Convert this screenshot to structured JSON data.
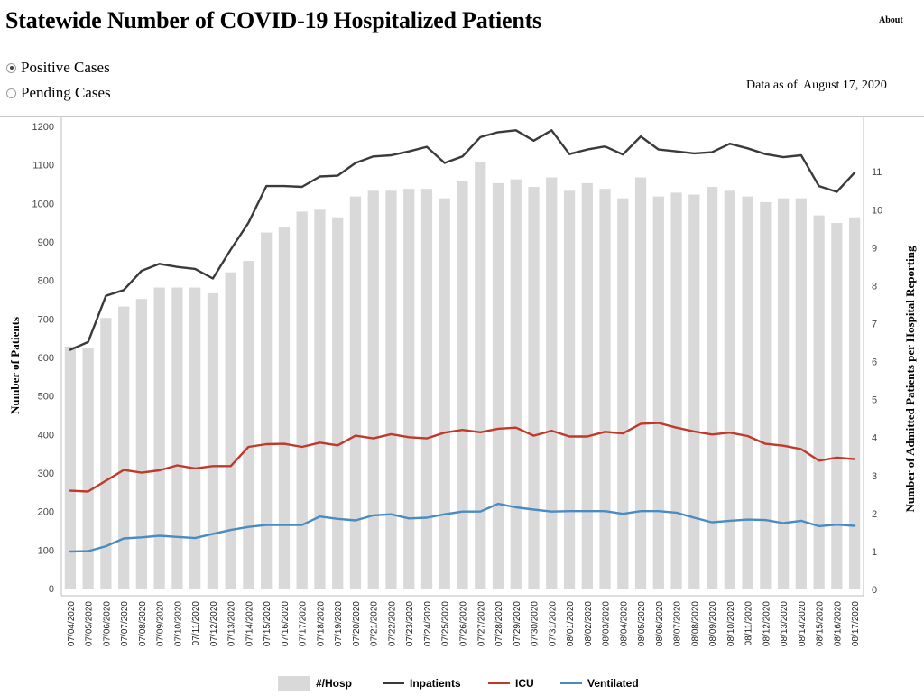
{
  "page": {
    "title": "Statewide Number of COVID-19 Hospitalized Patients",
    "about_label": "About",
    "radio_options": [
      {
        "label": "Positive Cases",
        "checked": true
      },
      {
        "label": "Pending Cases",
        "checked": false
      }
    ],
    "data_as_of": "Data as of  August 17, 2020"
  },
  "colors": {
    "bars": "#d9d9d9",
    "inpatients": "#3a3a3a",
    "icu": "#c0392b",
    "ventilated": "#4a8bc2"
  },
  "chart_data": {
    "type": "bar",
    "ylabel": "Number of Patients",
    "y2label": "Number of Admitted Patients per Hospital Reporting",
    "ylim": [
      0,
      1200
    ],
    "y_ticks": [
      "0",
      "100",
      "200",
      "300",
      "400",
      "500",
      "600",
      "700",
      "800",
      "900",
      "1000",
      "1100",
      "1200"
    ],
    "y2lim": [
      0,
      11.6
    ],
    "y2_ticks": [
      "0",
      "1",
      "2",
      "3",
      "4",
      "5",
      "6",
      "7",
      "8",
      "9",
      "10",
      "11"
    ],
    "grid": false,
    "legend_position": "bottom",
    "categories": [
      "07/04/2020",
      "07/05/2020",
      "07/06/2020",
      "07/07/2020",
      "07/08/2020",
      "07/09/2020",
      "07/10/2020",
      "07/11/2020",
      "07/12/2020",
      "07/13/2020",
      "07/14/2020",
      "07/15/2020",
      "07/16/2020",
      "07/17/2020",
      "07/18/2020",
      "07/19/2020",
      "07/20/2020",
      "07/21/2020",
      "07/22/2020",
      "07/23/2020",
      "07/24/2020",
      "07/25/2020",
      "07/26/2020",
      "07/27/2020",
      "07/28/2020",
      "07/29/2020",
      "07/30/2020",
      "07/31/2020",
      "08/01/2020",
      "08/02/2020",
      "08/03/2020",
      "08/04/2020",
      "08/05/2020",
      "08/06/2020",
      "08/07/2020",
      "08/08/2020",
      "08/09/2020",
      "08/10/2020",
      "08/11/2020",
      "08/12/2020",
      "08/13/2020",
      "08/14/2020",
      "08/15/2020",
      "08/16/2020",
      "08/17/2020"
    ],
    "series": [
      {
        "name": "#/Hosp",
        "type": "bar",
        "axis": "right",
        "values": [
          6.4,
          6.35,
          7.15,
          7.45,
          7.65,
          7.95,
          7.95,
          7.95,
          7.8,
          8.35,
          8.65,
          9.4,
          9.55,
          9.95,
          10.0,
          9.8,
          10.35,
          10.5,
          10.5,
          10.55,
          10.55,
          10.3,
          10.75,
          11.25,
          10.7,
          10.8,
          10.6,
          10.85,
          10.5,
          10.7,
          10.55,
          10.3,
          10.85,
          10.35,
          10.45,
          10.4,
          10.6,
          10.5,
          10.35,
          10.2,
          10.3,
          10.3,
          9.85,
          9.65,
          9.8
        ]
      },
      {
        "name": "Inpatients",
        "type": "line",
        "axis": "left",
        "values": [
          620,
          640,
          760,
          775,
          825,
          843,
          835,
          830,
          805,
          880,
          950,
          1045,
          1045,
          1043,
          1070,
          1072,
          1105,
          1122,
          1125,
          1135,
          1147,
          1105,
          1122,
          1172,
          1185,
          1190,
          1163,
          1190,
          1128,
          1140,
          1148,
          1127,
          1174,
          1140,
          1135,
          1130,
          1133,
          1155,
          1143,
          1128,
          1120,
          1125,
          1045,
          1030,
          1080
        ]
      },
      {
        "name": "ICU",
        "type": "line",
        "axis": "left",
        "values": [
          254,
          252,
          280,
          308,
          301,
          307,
          320,
          312,
          318,
          318,
          368,
          375,
          376,
          368,
          379,
          372,
          397,
          390,
          401,
          393,
          390,
          405,
          412,
          406,
          415,
          418,
          397,
          410,
          395,
          395,
          407,
          403,
          428,
          430,
          418,
          408,
          400,
          405,
          396,
          376,
          371,
          362,
          332,
          340,
          336
        ]
      },
      {
        "name": "Ventilated",
        "type": "line",
        "axis": "left",
        "values": [
          96,
          97,
          110,
          130,
          133,
          137,
          134,
          131,
          142,
          152,
          160,
          165,
          165,
          165,
          187,
          181,
          177,
          190,
          193,
          182,
          184,
          193,
          200,
          200,
          220,
          211,
          205,
          200,
          201,
          201,
          201,
          194,
          201,
          201,
          197,
          184,
          172,
          176,
          179,
          178,
          170,
          176,
          162,
          166,
          163
        ]
      }
    ]
  }
}
